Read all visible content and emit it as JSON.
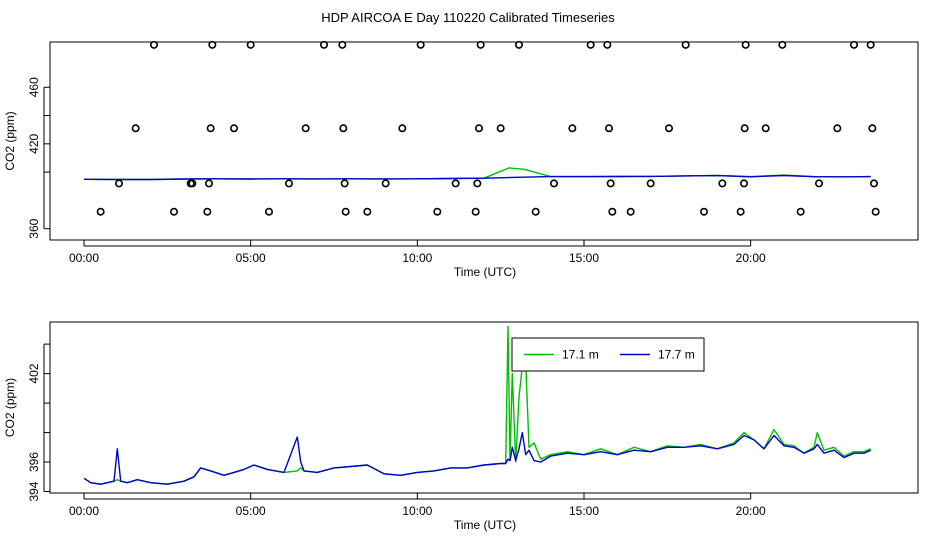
{
  "title": "HDP AIRCOA E  Day 110220  Calibrated Timeseries",
  "chart_data": [
    {
      "type": "scatter",
      "xlabel": "Time (UTC)",
      "ylabel": "CO2 (ppm)",
      "xlim": [
        0,
        24
      ],
      "ylim": [
        352,
        492
      ],
      "xticks": [
        0,
        5,
        10,
        15,
        20
      ],
      "xtick_labels": [
        "00:00",
        "05:00",
        "10:00",
        "15:00",
        "20:00"
      ],
      "yticks": [
        360,
        420,
        460
      ],
      "ytick_labels": [
        "360",
        "420",
        "460"
      ],
      "yticks_unlabeled": [
        400,
        440
      ],
      "series": [
        {
          "color": "#00c000",
          "style": "line",
          "x": [
            0,
            1,
            2,
            3,
            4,
            5,
            6,
            7,
            8,
            9,
            10,
            11,
            12,
            12.75,
            13.2,
            14,
            15,
            16,
            17,
            18,
            19,
            20,
            21,
            22,
            23,
            23.6
          ],
          "y": [
            394.9,
            394.8,
            394.8,
            395.1,
            395.3,
            395.1,
            395.3,
            395.2,
            395.3,
            395.2,
            395.3,
            395.5,
            395.7,
            403,
            402,
            396.8,
            396.8,
            396.9,
            397,
            397.3,
            397.6,
            396.8,
            397.9,
            396.7,
            396.7,
            396.8
          ]
        },
        {
          "color": "#0000cc",
          "style": "line",
          "x": [
            0,
            1,
            2,
            3,
            4,
            5,
            6,
            7,
            8,
            9,
            10,
            11,
            12,
            13,
            14,
            15,
            16,
            17,
            18,
            19,
            20,
            21,
            22,
            23,
            23.6
          ],
          "y": [
            394.9,
            394.8,
            394.8,
            395.1,
            395.3,
            395.1,
            395.3,
            395.2,
            395.3,
            395.2,
            395.3,
            395.5,
            395.7,
            396.3,
            396.8,
            396.8,
            396.9,
            397,
            397.3,
            397.5,
            396.7,
            397.6,
            396.7,
            396.7,
            396.8
          ]
        },
        {
          "color": "#000000",
          "style": "points",
          "x": [
            0.5,
            1.05,
            1.55,
            2.1,
            2.7,
            3.2,
            3.25,
            3.7,
            3.75,
            3.8,
            3.85,
            4.5,
            5.0,
            5.55,
            6.15,
            6.65,
            7.2,
            7.75,
            7.78,
            7.82,
            7.85,
            8.5,
            9.05,
            9.55,
            10.1,
            10.6,
            11.15,
            11.75,
            11.8,
            11.85,
            11.9,
            12.5,
            13.05,
            13.55,
            14.1,
            14.65,
            15.2,
            15.7,
            15.75,
            15.8,
            15.85,
            16.4,
            17.0,
            17.55,
            18.05,
            18.6,
            19.15,
            19.7,
            19.8,
            19.82,
            19.85,
            20.45,
            20.95,
            21.5,
            22.05,
            22.6,
            23.1,
            23.6,
            23.65,
            23.7,
            23.75
          ],
          "y": [
            372,
            392,
            431,
            490,
            372,
            392,
            392,
            372,
            392,
            431,
            490,
            431,
            490,
            372,
            392,
            431,
            490,
            490,
            431,
            392,
            372,
            372,
            392,
            431,
            490,
            372,
            392,
            372,
            392,
            431,
            490,
            431,
            490,
            372,
            392,
            431,
            490,
            490,
            431,
            392,
            372,
            372,
            392,
            431,
            490,
            372,
            392,
            372,
            392,
            431,
            490,
            431,
            490,
            372,
            392,
            431,
            490,
            490,
            431,
            392,
            372
          ]
        }
      ]
    },
    {
      "type": "line",
      "xlabel": "Time (UTC)",
      "ylabel": "CO2 (ppm)",
      "xlim": [
        0,
        24
      ],
      "ylim": [
        393.9,
        405.5
      ],
      "xticks": [
        0,
        5,
        10,
        15,
        20
      ],
      "xtick_labels": [
        "00:00",
        "05:00",
        "10:00",
        "15:00",
        "20:00"
      ],
      "yticks": [
        394,
        396,
        402
      ],
      "ytick_labels": [
        "394",
        "396",
        "402"
      ],
      "yticks_unlabeled": [
        398,
        400,
        404
      ],
      "legend": "top-center",
      "series": [
        {
          "name": "17.1 m",
          "color": "#00c000",
          "x": [
            0,
            0.2,
            0.5,
            0.9,
            1.0,
            1.1,
            1.3,
            1.6,
            2.0,
            2.5,
            3.0,
            3.3,
            3.5,
            3.8,
            4.2,
            4.5,
            4.8,
            5.1,
            5.5,
            6.0,
            6.4,
            6.5,
            6.6,
            7.0,
            7.5,
            8.0,
            8.5,
            9.0,
            9.5,
            10.0,
            10.5,
            11.0,
            11.5,
            12.0,
            12.5,
            12.65,
            12.72,
            12.78,
            12.85,
            12.95,
            13.05,
            13.15,
            13.25,
            13.35,
            13.5,
            13.7,
            14.0,
            14.5,
            15.0,
            15.5,
            16.0,
            16.5,
            17.0,
            17.5,
            18.0,
            18.5,
            19.0,
            19.5,
            19.8,
            20.1,
            20.4,
            20.7,
            21.0,
            21.3,
            21.6,
            21.9,
            22.0,
            22.2,
            22.5,
            22.8,
            23.1,
            23.4,
            23.6
          ],
          "y": [
            394.9,
            394.6,
            394.5,
            394.7,
            394.8,
            394.7,
            394.6,
            394.8,
            394.6,
            394.5,
            394.7,
            395.0,
            395.6,
            395.4,
            395.1,
            395.3,
            395.5,
            395.8,
            395.5,
            395.3,
            395.4,
            395.6,
            395.4,
            395.3,
            395.6,
            395.7,
            395.8,
            395.2,
            395.1,
            395.3,
            395.4,
            395.6,
            395.6,
            395.8,
            395.9,
            395.9,
            405.2,
            396.2,
            402.0,
            396.0,
            400.4,
            402.5,
            402.8,
            397.0,
            397.3,
            396.2,
            396.5,
            396.7,
            396.5,
            396.9,
            396.5,
            397.0,
            396.7,
            397.1,
            397.0,
            397.2,
            396.9,
            397.3,
            398.0,
            397.5,
            396.9,
            398.2,
            397.2,
            397.1,
            396.6,
            397.0,
            398.0,
            396.8,
            397.0,
            396.4,
            396.7,
            396.7,
            396.9
          ]
        },
        {
          "name": "17.7 m",
          "color": "#0000cc",
          "x": [
            0,
            0.2,
            0.5,
            0.9,
            1.0,
            1.1,
            1.3,
            1.6,
            2.0,
            2.5,
            3.0,
            3.3,
            3.5,
            3.8,
            4.2,
            4.5,
            4.8,
            5.1,
            5.5,
            6.0,
            6.4,
            6.5,
            6.6,
            7.0,
            7.5,
            8.0,
            8.5,
            9.0,
            9.5,
            10.0,
            10.5,
            11.0,
            11.5,
            12.0,
            12.5,
            12.65,
            12.72,
            12.78,
            12.85,
            12.95,
            13.05,
            13.15,
            13.25,
            13.35,
            13.5,
            13.7,
            14.0,
            14.5,
            15.0,
            15.5,
            16.0,
            16.5,
            17.0,
            17.5,
            18.0,
            18.5,
            19.0,
            19.5,
            19.8,
            20.1,
            20.4,
            20.7,
            21.0,
            21.3,
            21.6,
            21.9,
            22.0,
            22.2,
            22.5,
            22.8,
            23.1,
            23.4,
            23.6
          ],
          "y": [
            394.9,
            394.6,
            394.5,
            394.7,
            396.9,
            394.7,
            394.6,
            394.8,
            394.6,
            394.5,
            394.7,
            395.0,
            395.6,
            395.4,
            395.1,
            395.3,
            395.5,
            395.8,
            395.5,
            395.3,
            397.7,
            396.0,
            395.4,
            395.3,
            395.6,
            395.7,
            395.8,
            395.2,
            395.1,
            395.3,
            395.4,
            395.6,
            395.6,
            395.8,
            395.9,
            395.9,
            396.2,
            396.1,
            397.0,
            396.1,
            396.9,
            398.0,
            396.5,
            396.8,
            396.1,
            396.0,
            396.4,
            396.6,
            396.5,
            396.7,
            396.5,
            396.8,
            396.7,
            397.0,
            397.0,
            397.1,
            396.9,
            397.2,
            397.8,
            397.5,
            396.9,
            397.8,
            397.1,
            397.0,
            396.6,
            396.9,
            397.2,
            396.6,
            396.8,
            396.3,
            396.6,
            396.6,
            396.8
          ]
        }
      ]
    }
  ]
}
